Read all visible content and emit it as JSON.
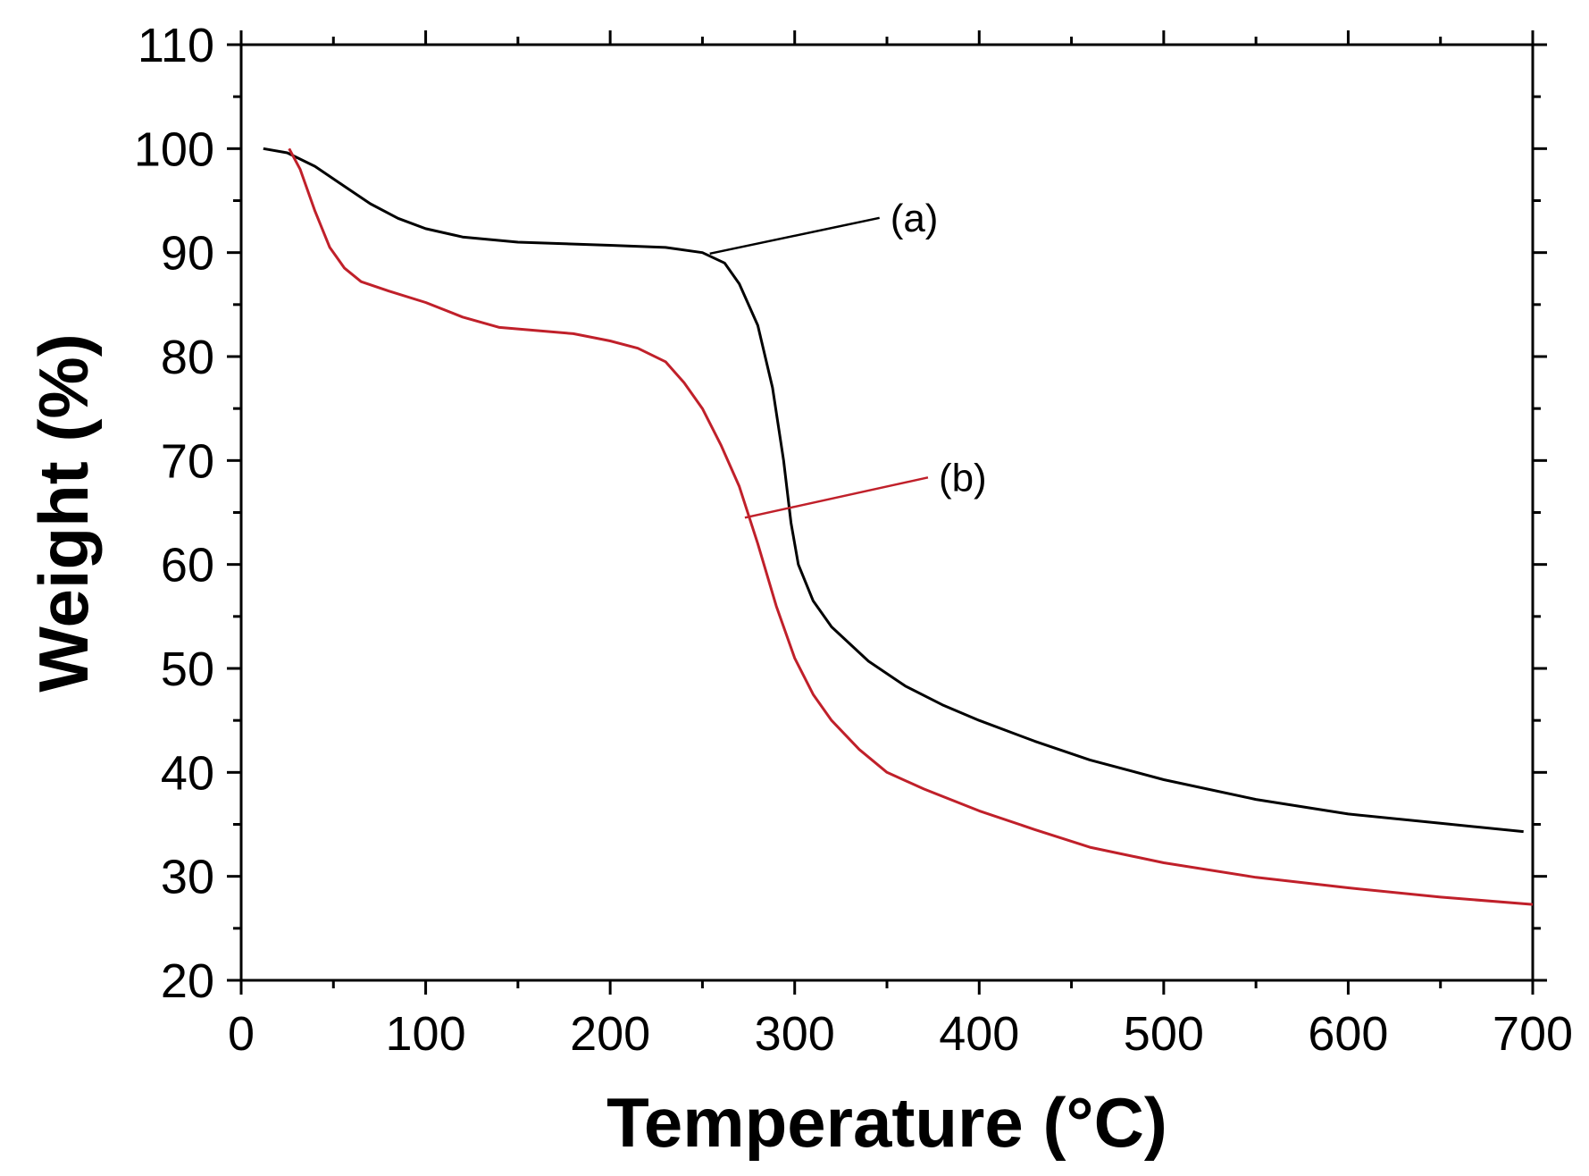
{
  "chart_data": {
    "type": "line",
    "title": "",
    "xlabel": "Temperature (°C)",
    "ylabel": "Weight (%)",
    "xlim": [
      0,
      700
    ],
    "ylim": [
      20,
      110
    ],
    "xticks": [
      0,
      100,
      200,
      300,
      400,
      500,
      600,
      700
    ],
    "yticks": [
      20,
      30,
      40,
      50,
      60,
      70,
      80,
      90,
      100,
      110
    ],
    "grid": false,
    "legend": "none",
    "series": [
      {
        "label": "(a)",
        "color": "#000000",
        "points": [
          [
            12,
            100
          ],
          [
            25,
            99.6
          ],
          [
            40,
            98.3
          ],
          [
            55,
            96.5
          ],
          [
            70,
            94.7
          ],
          [
            85,
            93.3
          ],
          [
            100,
            92.3
          ],
          [
            120,
            91.5
          ],
          [
            150,
            91.0
          ],
          [
            200,
            90.7
          ],
          [
            230,
            90.5
          ],
          [
            250,
            90.0
          ],
          [
            262,
            89.0
          ],
          [
            270,
            87.0
          ],
          [
            280,
            83.0
          ],
          [
            288,
            77.0
          ],
          [
            294,
            70.0
          ],
          [
            298,
            64.0
          ],
          [
            302,
            60.0
          ],
          [
            310,
            56.5
          ],
          [
            320,
            54.0
          ],
          [
            340,
            50.7
          ],
          [
            360,
            48.3
          ],
          [
            380,
            46.5
          ],
          [
            400,
            45.0
          ],
          [
            430,
            43.0
          ],
          [
            460,
            41.2
          ],
          [
            500,
            39.3
          ],
          [
            550,
            37.4
          ],
          [
            600,
            36.0
          ],
          [
            650,
            35.1
          ],
          [
            695,
            34.3
          ]
        ]
      },
      {
        "label": "(b)",
        "color": "#c0202a",
        "points": [
          [
            26,
            100
          ],
          [
            32,
            98.0
          ],
          [
            40,
            94.0
          ],
          [
            48,
            90.5
          ],
          [
            56,
            88.5
          ],
          [
            65,
            87.2
          ],
          [
            80,
            86.3
          ],
          [
            100,
            85.2
          ],
          [
            120,
            83.8
          ],
          [
            140,
            82.8
          ],
          [
            160,
            82.5
          ],
          [
            180,
            82.2
          ],
          [
            200,
            81.5
          ],
          [
            215,
            80.8
          ],
          [
            230,
            79.5
          ],
          [
            240,
            77.5
          ],
          [
            250,
            75.0
          ],
          [
            260,
            71.5
          ],
          [
            270,
            67.5
          ],
          [
            280,
            62.0
          ],
          [
            290,
            56.0
          ],
          [
            300,
            51.0
          ],
          [
            310,
            47.5
          ],
          [
            320,
            45.0
          ],
          [
            335,
            42.2
          ],
          [
            350,
            40.0
          ],
          [
            370,
            38.4
          ],
          [
            400,
            36.3
          ],
          [
            430,
            34.5
          ],
          [
            460,
            32.8
          ],
          [
            500,
            31.3
          ],
          [
            550,
            29.9
          ],
          [
            600,
            28.9
          ],
          [
            650,
            28.0
          ],
          [
            700,
            27.3
          ]
        ]
      }
    ],
    "annotations": [
      {
        "text": "(a)",
        "series": "(a)",
        "point": [
          254,
          89.9
        ]
      },
      {
        "text": "(b)",
        "series": "(b)",
        "point": [
          273,
          64.5
        ]
      }
    ]
  }
}
